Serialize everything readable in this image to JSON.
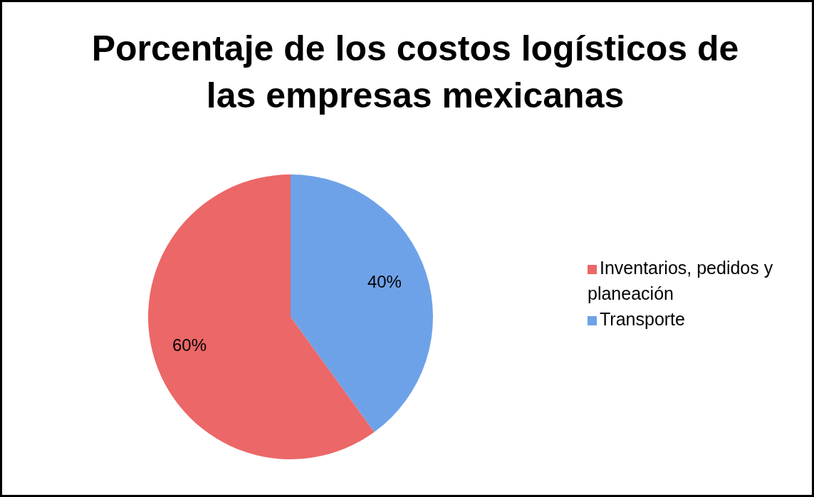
{
  "chart_data": {
    "type": "pie",
    "title": "Porcentaje de los costos logísticos de las empresas mexicanas",
    "categories": [
      "Transporte",
      "Inventarios, pedidos y planeación"
    ],
    "values": [
      40,
      60
    ],
    "colors": [
      "#6ea2e8",
      "#ec6767"
    ],
    "value_labels": [
      "40%",
      "60%"
    ],
    "legend": "right"
  }
}
